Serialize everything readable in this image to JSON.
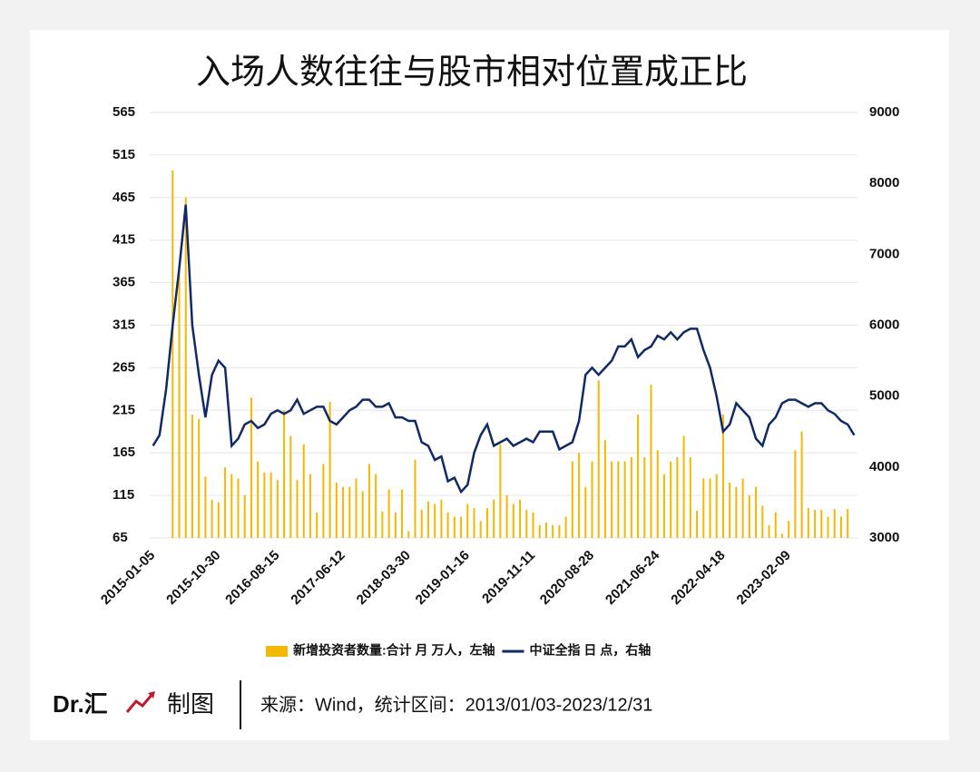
{
  "chart_data": {
    "type": "combo",
    "title": "入场人数往往与股市相对位置成正比",
    "categories": [
      "2015-01-05",
      null,
      null,
      null,
      null,
      null,
      null,
      null,
      null,
      null,
      "2015-10-30",
      null,
      null,
      null,
      null,
      null,
      null,
      null,
      null,
      "2016-08-15",
      null,
      null,
      null,
      null,
      null,
      null,
      null,
      null,
      null,
      "2017-06-12",
      null,
      null,
      null,
      null,
      null,
      null,
      null,
      null,
      null,
      "2018-03-30",
      null,
      null,
      null,
      null,
      null,
      null,
      null,
      null,
      "2019-01-16",
      null,
      null,
      null,
      null,
      null,
      null,
      null,
      null,
      null,
      "2019-11-11",
      null,
      null,
      null,
      null,
      null,
      null,
      null,
      null,
      "2020-08-28",
      null,
      null,
      null,
      null,
      null,
      null,
      null,
      null,
      null,
      "2021-06-24",
      null,
      null,
      null,
      null,
      null,
      null,
      null,
      null,
      null,
      "2022-04-18",
      null,
      null,
      null,
      null,
      null,
      null,
      null,
      null,
      null,
      "2023-02-09",
      null,
      null,
      null,
      null,
      null,
      null,
      null,
      null,
      null,
      null
    ],
    "series": [
      {
        "name": "新增投资者数量:合计 月 万人，左轴",
        "type": "bar",
        "color": "#f5b800",
        "values": [
          null,
          null,
          null,
          497,
          380,
          465,
          210,
          205,
          137,
          110,
          107,
          148,
          140,
          135,
          115,
          230,
          155,
          142,
          142,
          133,
          215,
          185,
          133,
          175,
          140,
          95,
          152,
          225,
          130,
          125,
          125,
          135,
          120,
          152,
          140,
          96,
          122,
          95,
          122,
          73,
          157,
          98,
          108,
          105,
          110,
          95,
          90,
          90,
          105,
          100,
          85,
          100,
          110,
          175,
          115,
          105,
          110,
          98,
          95,
          80,
          83,
          80,
          80,
          90,
          155,
          165,
          125,
          155,
          250,
          180,
          155,
          155,
          155,
          160,
          210,
          160,
          245,
          168,
          140,
          155,
          160,
          185,
          160,
          97,
          135,
          135,
          140,
          210,
          130,
          125,
          135,
          115,
          125,
          103,
          80,
          95,
          70,
          85,
          168,
          190,
          100,
          98,
          98,
          90,
          99,
          90,
          99,
          null
        ]
      },
      {
        "name": "中证全指 日 点，右轴",
        "type": "line",
        "axis": "y2",
        "color": "#0f2a66",
        "values": [
          4300,
          4450,
          5100,
          6000,
          6800,
          7700,
          6000,
          5300,
          4700,
          5300,
          5500,
          5400,
          4300,
          4400,
          4600,
          4650,
          4550,
          4600,
          4750,
          4800,
          4750,
          4800,
          4950,
          4750,
          4800,
          4850,
          4850,
          4650,
          4600,
          4700,
          4800,
          4850,
          4950,
          4950,
          4850,
          4850,
          4900,
          4700,
          4700,
          4650,
          4650,
          4350,
          4300,
          4100,
          4150,
          3800,
          3850,
          3650,
          3750,
          4200,
          4450,
          4600,
          4300,
          4350,
          4400,
          4300,
          4350,
          4400,
          4350,
          4500,
          4500,
          4500,
          4250,
          4300,
          4350,
          4650,
          5300,
          5400,
          5300,
          5400,
          5500,
          5700,
          5700,
          5800,
          5550,
          5650,
          5700,
          5850,
          5800,
          5900,
          5800,
          5900,
          5950,
          5950,
          5650,
          5400,
          5000,
          4500,
          4600,
          4900,
          4800,
          4700,
          4400,
          4300,
          4600,
          4700,
          4900,
          4950,
          4950,
          4900,
          4850,
          4900,
          4900,
          4800,
          4750,
          4650,
          4600,
          4450
        ]
      }
    ],
    "ylim": [
      65,
      565
    ],
    "yticks": [
      65,
      115,
      165,
      215,
      265,
      315,
      365,
      415,
      465,
      515,
      565
    ],
    "y2lim": [
      3000,
      9000
    ],
    "y2ticks": [
      3000,
      4000,
      5000,
      6000,
      7000,
      8000,
      9000
    ],
    "grid": true
  },
  "footer": {
    "brand": "Dr.汇",
    "made": "制图",
    "source": "来源：Wind，统计区间：2013/01/03-2023/12/31"
  }
}
